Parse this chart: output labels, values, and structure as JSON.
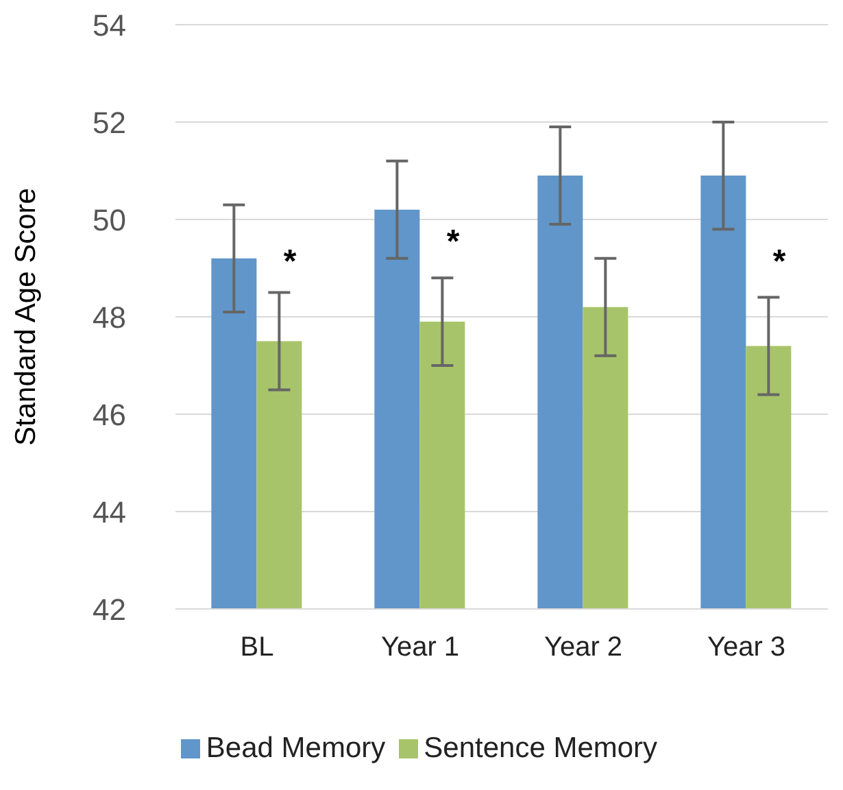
{
  "chart_data": {
    "type": "bar",
    "ylabel": "Standard Age Score",
    "categories": [
      "BL",
      "Year 1",
      "Year 2",
      "Year 3"
    ],
    "series": [
      {
        "name": "Bead Memory",
        "color": "#6096c9",
        "values": [
          49.2,
          50.2,
          50.9,
          50.9
        ],
        "errors": [
          1.1,
          1.0,
          1.0,
          1.1
        ]
      },
      {
        "name": "Sentence Memory",
        "color": "#a8c46a",
        "values": [
          47.5,
          47.9,
          48.2,
          47.4
        ],
        "errors": [
          1.0,
          0.9,
          1.0,
          1.0
        ]
      }
    ],
    "ylim": [
      42,
      54
    ],
    "yticks": [
      42,
      44,
      46,
      48,
      50,
      52,
      54
    ],
    "grid": "y",
    "legend": "bottom",
    "annotations": [
      {
        "text": "*",
        "x": "BL",
        "y": 49.1
      },
      {
        "text": "*",
        "x": "Year 1",
        "y": 49.5
      },
      {
        "text": "*",
        "x": "Year 3",
        "y": 49.1
      }
    ]
  }
}
